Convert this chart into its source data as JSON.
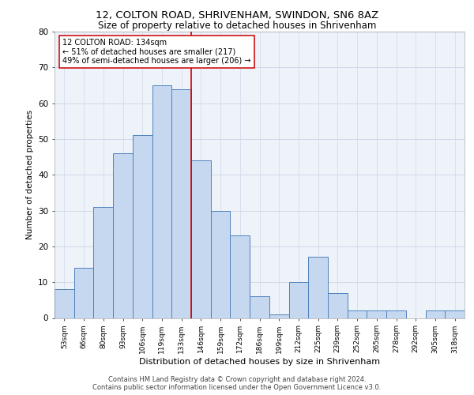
{
  "title_line1": "12, COLTON ROAD, SHRIVENHAM, SWINDON, SN6 8AZ",
  "title_line2": "Size of property relative to detached houses in Shrivenham",
  "xlabel": "Distribution of detached houses by size in Shrivenham",
  "ylabel": "Number of detached properties",
  "bin_labels": [
    "53sqm",
    "66sqm",
    "80sqm",
    "93sqm",
    "106sqm",
    "119sqm",
    "133sqm",
    "146sqm",
    "159sqm",
    "172sqm",
    "186sqm",
    "199sqm",
    "212sqm",
    "225sqm",
    "239sqm",
    "252sqm",
    "265sqm",
    "278sqm",
    "292sqm",
    "305sqm",
    "318sqm"
  ],
  "bar_heights": [
    8,
    14,
    31,
    46,
    51,
    65,
    64,
    44,
    30,
    23,
    6,
    1,
    10,
    17,
    7,
    2,
    2,
    2,
    0,
    2,
    2
  ],
  "bar_color": "#c5d8f0",
  "bar_edge_color": "#4f81bd",
  "vline_x": 6.5,
  "vline_color": "#cc0000",
  "annotation_text": "12 COLTON ROAD: 134sqm\n← 51% of detached houses are smaller (217)\n49% of semi-detached houses are larger (206) →",
  "annotation_box_color": "#ffffff",
  "annotation_box_edge": "#cc0000",
  "ylim": [
    0,
    80
  ],
  "yticks": [
    0,
    10,
    20,
    30,
    40,
    50,
    60,
    70,
    80
  ],
  "grid_color": "#d0d8e8",
  "background_color": "#eef2f9",
  "footer_line1": "Contains HM Land Registry data © Crown copyright and database right 2024.",
  "footer_line2": "Contains public sector information licensed under the Open Government Licence v3.0."
}
